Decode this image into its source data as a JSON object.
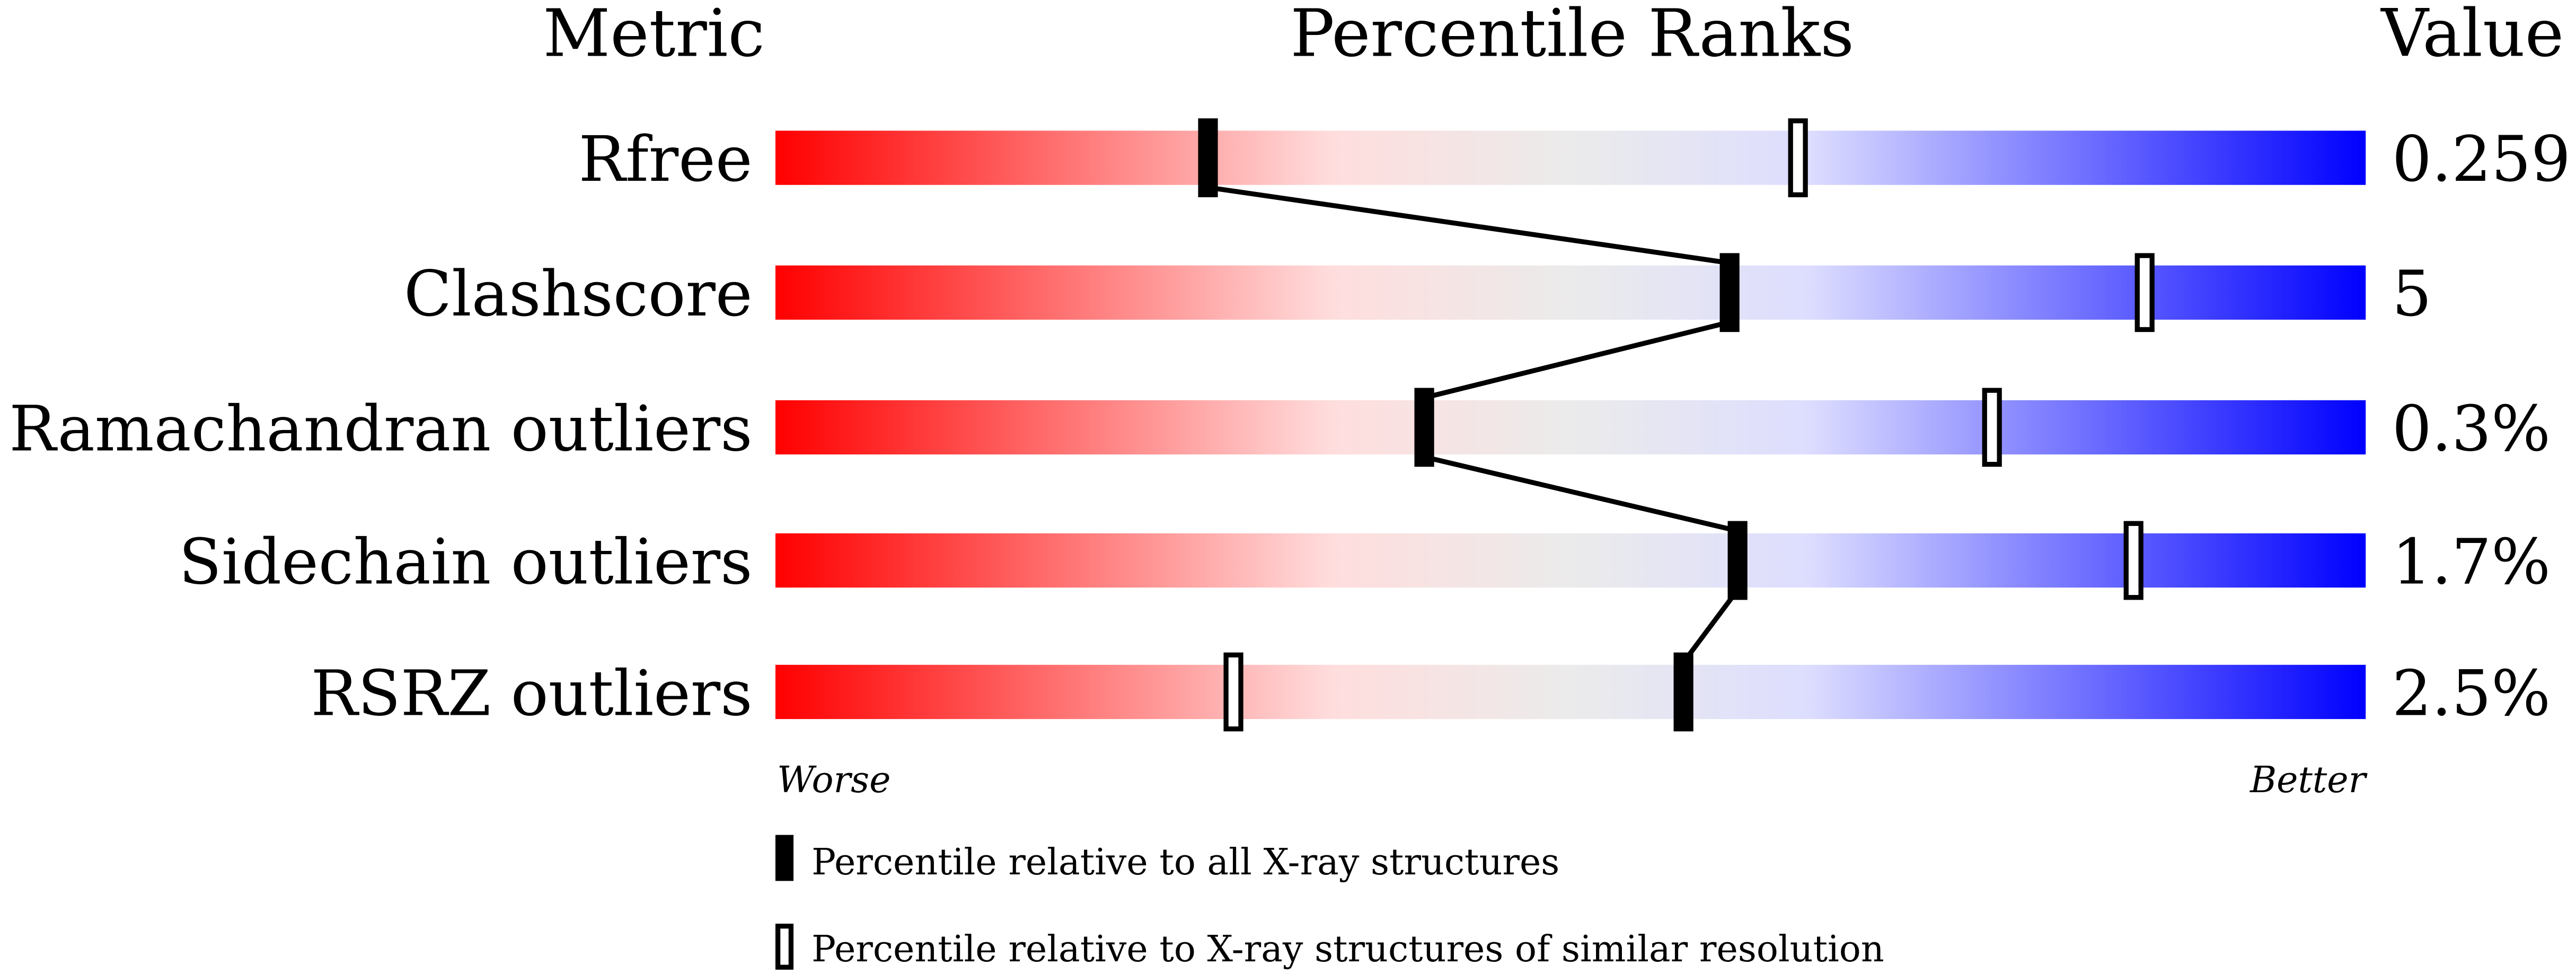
{
  "chart_data": {
    "type": "percentile-bar",
    "headers": {
      "metric": "Metric",
      "ranks": "Percentile Ranks",
      "value": "Value"
    },
    "xlim": [
      0,
      100
    ],
    "axis_labels": {
      "left": "Worse",
      "right": "Better"
    },
    "gradient_colors": [
      "#ff0000",
      "#ffdddd",
      "#ebebeb",
      "#ddddff",
      "#0000ff"
    ],
    "rows": [
      {
        "metric": "Rfree",
        "value": "0.259",
        "percentile_all": 27.2,
        "percentile_similar": 64.3
      },
      {
        "metric": "Clashscore",
        "value": "5",
        "percentile_all": 60.0,
        "percentile_similar": 86.1
      },
      {
        "metric": "Ramachandran outliers",
        "value": "0.3%",
        "percentile_all": 40.8,
        "percentile_similar": 76.5
      },
      {
        "metric": "Sidechain outliers",
        "value": "1.7%",
        "percentile_all": 60.5,
        "percentile_similar": 85.4
      },
      {
        "metric": "RSRZ outliers",
        "value": "2.5%",
        "percentile_all": 57.1,
        "percentile_similar": 28.8
      }
    ],
    "legend": [
      {
        "marker": "filled",
        "label": "Percentile relative to all X-ray structures"
      },
      {
        "marker": "open",
        "label": "Percentile relative to X-ray structures of similar resolution"
      }
    ]
  }
}
